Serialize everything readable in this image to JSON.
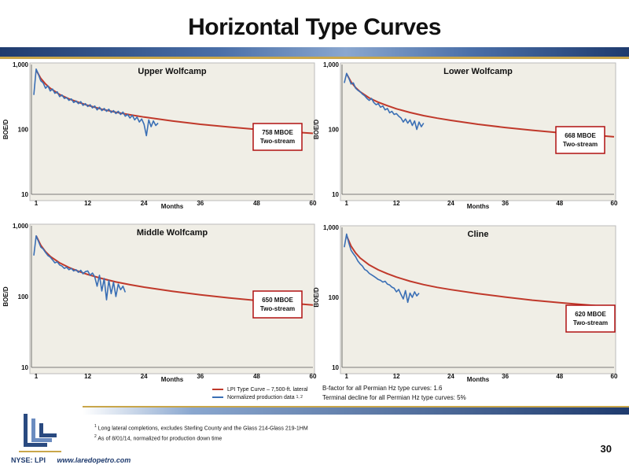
{
  "slide": {
    "title": "Horizontal Type Curves",
    "page_number": "30",
    "footer_ticker": "NYSE: LPI",
    "footer_url": "www.laredopetro.com"
  },
  "legend": {
    "type_curve": "LPI Type Curve – 7,500-ft. lateral",
    "normalized": "Normalized production data",
    "normalized_sup": "1, 2"
  },
  "notes": {
    "bfactor": "B-factor for all Permian Hz type curves: 1.6",
    "terminal": "Terminal decline for all Permian Hz type curves: 5%"
  },
  "footnotes": {
    "f1_num": "1",
    "f1": "Long lateral completions, excludes Sterling County and the Glass 214-Glass 219-1HM",
    "f2_num": "2",
    "f2": "As of 8/01/14, normalized for production down time"
  },
  "colors": {
    "type_curve": "#c0392b",
    "production": "#3a6fb5",
    "plot_bg": "#f0eee6",
    "box_border": "#b01010"
  },
  "chart_data": [
    {
      "type": "line",
      "title": "Upper Wolfcamp",
      "xlabel": "Months",
      "ylabel": "BOE/D",
      "yscale": "log",
      "ylim": [
        10,
        1000
      ],
      "xlim": [
        0,
        60
      ],
      "xticks": [
        {
          "v": 1,
          "t": "1"
        },
        {
          "v": 12,
          "t": "12"
        },
        {
          "v": 24,
          "t": "24"
        },
        {
          "v": 36,
          "t": "36"
        },
        {
          "v": 48,
          "t": "48"
        },
        {
          "v": 60,
          "t": "60"
        }
      ],
      "yticks": [
        {
          "v": 10,
          "t": "10"
        },
        {
          "v": 100,
          "t": "100"
        },
        {
          "v": 1000,
          "t": "1,000"
        }
      ],
      "annotation": [
        "758 MBOE",
        "Two-stream"
      ],
      "series": [
        {
          "kind": "type_curve",
          "x": [
            1,
            2,
            3,
            4,
            6,
            8,
            10,
            12,
            15,
            18,
            21,
            24,
            30,
            36,
            42,
            48,
            54,
            60
          ],
          "y": [
            820,
            610,
            500,
            430,
            345,
            295,
            262,
            235,
            205,
            184,
            168,
            155,
            135,
            120,
            109,
            100,
            93,
            87
          ]
        },
        {
          "kind": "production",
          "x": [
            0.5,
            1,
            1.5,
            2,
            2.5,
            3,
            3.5,
            4,
            4.5,
            5,
            5.5,
            6,
            6.5,
            7,
            7.5,
            8,
            8.5,
            9,
            9.5,
            10,
            10.5,
            11,
            11.5,
            12,
            12.5,
            13,
            13.5,
            14,
            14.5,
            15,
            15.5,
            16,
            16.5,
            17,
            17.5,
            18,
            18.5,
            19,
            19.5,
            20,
            20.5,
            21,
            21.5,
            22,
            22.5,
            23,
            23.5,
            24,
            24.5,
            25,
            25.5,
            26,
            26.5,
            27
          ],
          "y": [
            340,
            850,
            700,
            560,
            520,
            430,
            470,
            390,
            420,
            360,
            380,
            320,
            340,
            300,
            310,
            280,
            295,
            260,
            275,
            250,
            268,
            235,
            250,
            225,
            240,
            215,
            230,
            200,
            220,
            195,
            210,
            190,
            205,
            182,
            195,
            175,
            190,
            170,
            185,
            160,
            170,
            150,
            165,
            140,
            155,
            130,
            145,
            120,
            80,
            140,
            110,
            135,
            115,
            125
          ]
        }
      ]
    },
    {
      "type": "line",
      "title": "Lower Wolfcamp",
      "xlabel": "Months",
      "ylabel": "BOE/D",
      "yscale": "log",
      "ylim": [
        10,
        1000
      ],
      "xlim": [
        0,
        60
      ],
      "xticks": [
        {
          "v": 1,
          "t": "1"
        },
        {
          "v": 12,
          "t": "12"
        },
        {
          "v": 24,
          "t": "24"
        },
        {
          "v": 36,
          "t": "36"
        },
        {
          "v": 48,
          "t": "48"
        },
        {
          "v": 60,
          "t": "60"
        }
      ],
      "yticks": [
        {
          "v": 10,
          "t": "10"
        },
        {
          "v": 100,
          "t": "100"
        },
        {
          "v": 1000,
          "t": "1,000"
        }
      ],
      "annotation": [
        "668 MBOE",
        "Two-stream"
      ],
      "series": [
        {
          "kind": "type_curve",
          "x": [
            1,
            2,
            3,
            4,
            6,
            8,
            10,
            12,
            15,
            18,
            21,
            24,
            30,
            36,
            42,
            48,
            54,
            60
          ],
          "y": [
            720,
            540,
            440,
            380,
            305,
            262,
            232,
            208,
            182,
            163,
            149,
            138,
            120,
            107,
            97,
            89,
            83,
            77
          ]
        },
        {
          "kind": "production",
          "x": [
            0.5,
            1,
            1.5,
            2,
            2.5,
            3,
            3.5,
            4,
            4.5,
            5,
            5.5,
            6,
            6.5,
            7,
            7.5,
            8,
            8.5,
            9,
            9.5,
            10,
            10.5,
            11,
            11.5,
            12,
            12.5,
            13,
            13.5,
            14,
            14.5,
            15,
            15.5,
            16,
            16.5,
            17,
            17.5,
            18
          ],
          "y": [
            520,
            730,
            620,
            500,
            520,
            430,
            400,
            380,
            350,
            330,
            300,
            280,
            300,
            260,
            240,
            250,
            220,
            230,
            200,
            210,
            180,
            190,
            170,
            175,
            160,
            150,
            130,
            145,
            125,
            140,
            115,
            135,
            100,
            130,
            110,
            125
          ]
        }
      ]
    },
    {
      "type": "line",
      "title": "Middle Wolfcamp",
      "xlabel": "Months",
      "ylabel": "BOE/D",
      "yscale": "log",
      "ylim": [
        10,
        1000
      ],
      "xlim": [
        0,
        60
      ],
      "xticks": [
        {
          "v": 1,
          "t": "1"
        },
        {
          "v": 12,
          "t": "12"
        },
        {
          "v": 24,
          "t": "24"
        },
        {
          "v": 36,
          "t": "36"
        },
        {
          "v": 48,
          "t": "48"
        },
        {
          "v": 60,
          "t": "60"
        }
      ],
      "yticks": [
        {
          "v": 10,
          "t": "10"
        },
        {
          "v": 100,
          "t": "100"
        },
        {
          "v": 1000,
          "t": "1,000"
        }
      ],
      "annotation": [
        "650 MBOE",
        "Two-stream"
      ],
      "series": [
        {
          "kind": "type_curve",
          "x": [
            1,
            2,
            3,
            4,
            6,
            8,
            10,
            12,
            15,
            18,
            21,
            24,
            30,
            36,
            42,
            48,
            54,
            60
          ],
          "y": [
            720,
            530,
            430,
            370,
            300,
            258,
            228,
            205,
            180,
            161,
            147,
            136,
            119,
            106,
            96,
            88,
            82,
            76
          ]
        },
        {
          "kind": "production",
          "x": [
            0.5,
            1,
            1.5,
            2,
            2.5,
            3,
            3.5,
            4,
            4.5,
            5,
            5.5,
            6,
            6.5,
            7,
            7.5,
            8,
            8.5,
            9,
            9.5,
            10,
            10.5,
            11,
            11.5,
            12,
            12.5,
            13,
            13.5,
            14,
            14.5,
            15,
            15.5,
            16,
            16.5,
            17,
            17.5,
            18,
            18.5,
            19,
            19.5,
            20
          ],
          "y": [
            380,
            720,
            600,
            500,
            470,
            420,
            380,
            360,
            330,
            300,
            310,
            280,
            270,
            250,
            260,
            240,
            250,
            230,
            240,
            220,
            235,
            210,
            225,
            230,
            200,
            215,
            190,
            140,
            200,
            120,
            180,
            90,
            170,
            110,
            160,
            100,
            150,
            125,
            140,
            115
          ]
        }
      ]
    },
    {
      "type": "line",
      "title": "Cline",
      "xlabel": "Months",
      "ylabel": "BOE/D",
      "yscale": "log",
      "ylim": [
        10,
        1000
      ],
      "xlim": [
        0,
        60
      ],
      "xticks": [
        {
          "v": 1,
          "t": "1"
        },
        {
          "v": 12,
          "t": "12"
        },
        {
          "v": 24,
          "t": "24"
        },
        {
          "v": 36,
          "t": "36"
        },
        {
          "v": 48,
          "t": "48"
        },
        {
          "v": 60,
          "t": "60"
        }
      ],
      "yticks": [
        {
          "v": 10,
          "t": "10"
        },
        {
          "v": 100,
          "t": "100"
        },
        {
          "v": 1000,
          "t": "1,000"
        }
      ],
      "annotation": [
        "620 MBOE",
        "Two-stream"
      ],
      "series": [
        {
          "kind": "type_curve",
          "x": [
            1,
            2,
            3,
            4,
            6,
            8,
            10,
            12,
            15,
            18,
            21,
            24,
            30,
            36,
            42,
            48,
            54,
            60
          ],
          "y": [
            760,
            540,
            430,
            365,
            290,
            247,
            218,
            195,
            170,
            152,
            139,
            129,
            113,
            101,
            91,
            84,
            78,
            73
          ]
        },
        {
          "kind": "production",
          "x": [
            0.5,
            1,
            1.5,
            2,
            2.5,
            3,
            3.5,
            4,
            4.5,
            5,
            5.5,
            6,
            6.5,
            7,
            7.5,
            8,
            8.5,
            9,
            9.5,
            10,
            10.5,
            11,
            11.5,
            12,
            12.5,
            13,
            13.5,
            14,
            14.5,
            15,
            15.5,
            16,
            16.5,
            17
          ],
          "y": [
            520,
            800,
            600,
            470,
            420,
            380,
            330,
            300,
            280,
            250,
            240,
            220,
            210,
            200,
            190,
            180,
            175,
            165,
            170,
            155,
            150,
            140,
            135,
            120,
            130,
            110,
            95,
            125,
            85,
            115,
            100,
            120,
            105,
            115
          ]
        }
      ]
    }
  ]
}
